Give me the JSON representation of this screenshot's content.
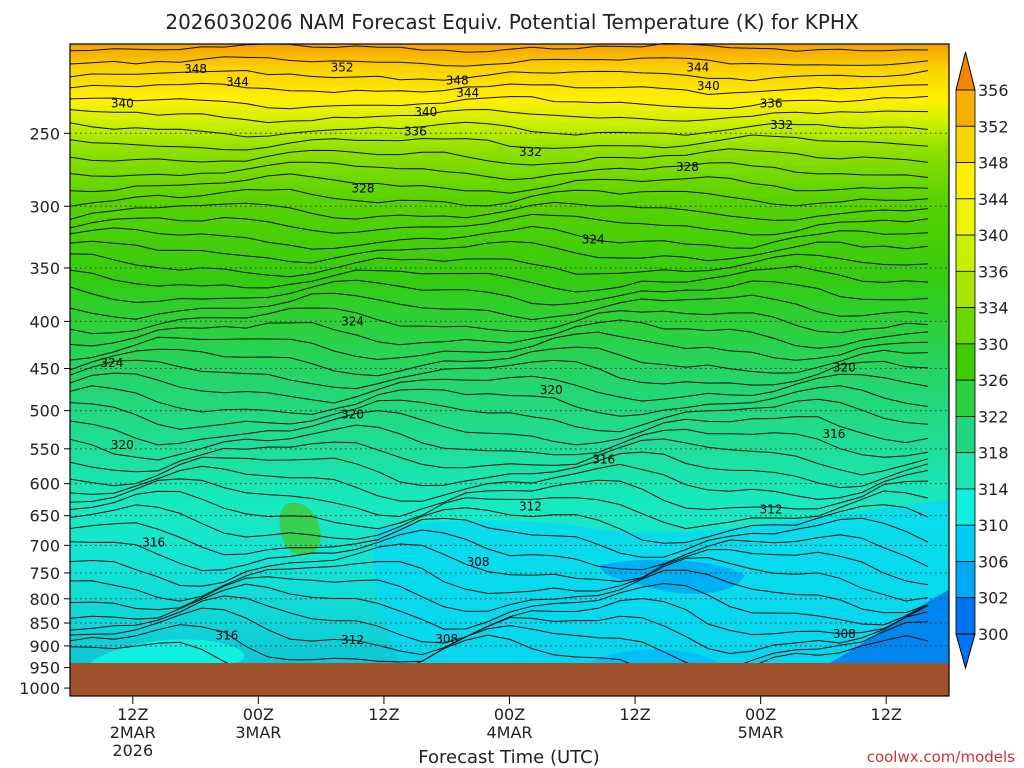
{
  "chart_data": {
    "type": "heatmap",
    "title": "2026030206 NAM Forecast Equiv. Potential Temperature (K) for KPHX",
    "xlabel": "Forecast Time (UTC)",
    "ylabel": "",
    "y_ticks": [
      "250",
      "300",
      "350",
      "400",
      "450",
      "500",
      "550",
      "600",
      "650",
      "700",
      "750",
      "800",
      "850",
      "900",
      "950",
      "1000"
    ],
    "y_range": [
      200,
      1020
    ],
    "x_ticks": [
      {
        "label": "12Z",
        "sub": "2MAR",
        "sub2": "2026",
        "hour": 6
      },
      {
        "label": "00Z",
        "sub": "3MAR",
        "sub2": "",
        "hour": 18
      },
      {
        "label": "12Z",
        "sub": "",
        "sub2": "",
        "hour": 30
      },
      {
        "label": "00Z",
        "sub": "4MAR",
        "sub2": "",
        "hour": 42
      },
      {
        "label": "12Z",
        "sub": "",
        "sub2": "",
        "hour": 54
      },
      {
        "label": "00Z",
        "sub": "5MAR",
        "sub2": "",
        "hour": 66
      },
      {
        "label": "12Z",
        "sub": "",
        "sub2": "",
        "hour": 78
      }
    ],
    "x_range_hours": [
      0,
      84
    ],
    "surface_pressure": 965,
    "colorbar_ticks": [
      "356",
      "352",
      "348",
      "344",
      "340",
      "336",
      "334",
      "330",
      "326",
      "322",
      "318",
      "314",
      "310",
      "306",
      "302",
      "300"
    ],
    "contour_labels": [
      {
        "text": "348",
        "hour": 12,
        "p": 213
      },
      {
        "text": "344",
        "hour": 16,
        "p": 220
      },
      {
        "text": "352",
        "hour": 26,
        "p": 212
      },
      {
        "text": "348",
        "hour": 37,
        "p": 219
      },
      {
        "text": "344",
        "hour": 38,
        "p": 226
      },
      {
        "text": "344",
        "hour": 60,
        "p": 212
      },
      {
        "text": "340",
        "hour": 61,
        "p": 222
      },
      {
        "text": "340",
        "hour": 5,
        "p": 232
      },
      {
        "text": "336",
        "hour": 67,
        "p": 232
      },
      {
        "text": "340",
        "hour": 34,
        "p": 237
      },
      {
        "text": "332",
        "hour": 68,
        "p": 245
      },
      {
        "text": "336",
        "hour": 33,
        "p": 249
      },
      {
        "text": "332",
        "hour": 44,
        "p": 262
      },
      {
        "text": "328",
        "hour": 59,
        "p": 272
      },
      {
        "text": "328",
        "hour": 28,
        "p": 287
      },
      {
        "text": "324",
        "hour": 50,
        "p": 326
      },
      {
        "text": "324",
        "hour": 27,
        "p": 400
      },
      {
        "text": "324",
        "hour": 4,
        "p": 444
      },
      {
        "text": "320",
        "hour": 74,
        "p": 449
      },
      {
        "text": "320",
        "hour": 46,
        "p": 475
      },
      {
        "text": "320",
        "hour": 27,
        "p": 505
      },
      {
        "text": "316",
        "hour": 73,
        "p": 530
      },
      {
        "text": "320",
        "hour": 5,
        "p": 545
      },
      {
        "text": "316",
        "hour": 51,
        "p": 565
      },
      {
        "text": "312",
        "hour": 44,
        "p": 635
      },
      {
        "text": "312",
        "hour": 67,
        "p": 640
      },
      {
        "text": "316",
        "hour": 8,
        "p": 695
      },
      {
        "text": "308",
        "hour": 39,
        "p": 730
      },
      {
        "text": "316",
        "hour": 15,
        "p": 877
      },
      {
        "text": "312",
        "hour": 27,
        "p": 887
      },
      {
        "text": "308",
        "hour": 36,
        "p": 885
      },
      {
        "text": "308",
        "hour": 74,
        "p": 874
      }
    ],
    "credit": "coolwx.com/models"
  },
  "colors": {
    "ground": "#a0522d",
    "cb_356": "#f08800",
    "cb_352": "#f5b000",
    "cb_348": "#f8d400",
    "cb_344": "#fff000",
    "cb_340": "#eef500",
    "cb_336": "#c8f000",
    "cb_334": "#a6e600",
    "cb_330": "#6bd600",
    "cb_326": "#3ccc00",
    "cb_322": "#2bd240",
    "cb_318": "#22d680",
    "cb_314": "#1de6b0",
    "cb_310": "#10f0e0",
    "cb_306": "#00cdf5",
    "cb_302": "#00a8f5",
    "cb_300": "#0074f0"
  }
}
